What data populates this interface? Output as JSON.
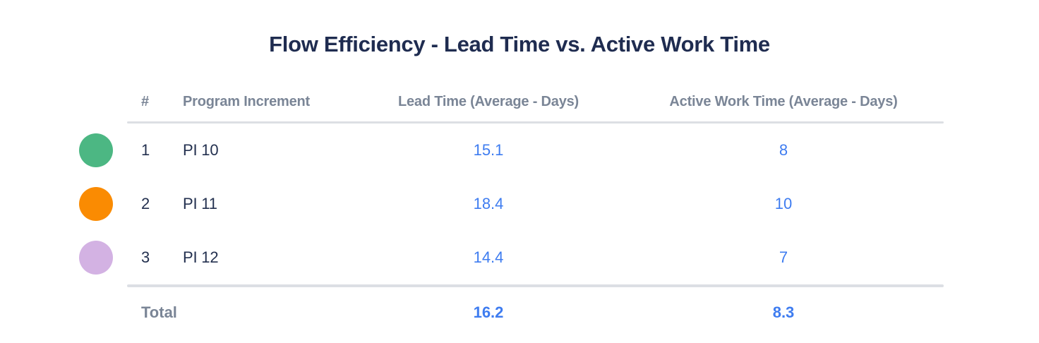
{
  "title": "Flow Efficiency - Lead Time vs. Active Work Time",
  "colors": {
    "title_text": "#1f2c50",
    "header_text": "#7a8596",
    "row_text": "#23304f",
    "value_blue": "#3e7cf0",
    "divider": "#dcdfe4"
  },
  "table": {
    "columns": {
      "index": "#",
      "program_increment": "Program Increment",
      "lead_time": "Lead Time (Average - Days)",
      "active_work_time": "Active Work Time (Average - Days)"
    },
    "rows": [
      {
        "index": "1",
        "name": "PI 10",
        "lead": "15.1",
        "active": "8",
        "marker_color": "#4cb783",
        "marker_color_name": "green"
      },
      {
        "index": "2",
        "name": "PI 11",
        "lead": "18.4",
        "active": "10",
        "marker_color": "#fa8b02",
        "marker_color_name": "orange"
      },
      {
        "index": "3",
        "name": "PI 12",
        "lead": "14.4",
        "active": "7",
        "marker_color": "#d3b2e3",
        "marker_color_name": "lavender"
      }
    ],
    "total": {
      "label": "Total",
      "lead": "16.2",
      "active": "8.3"
    }
  },
  "chart_data": {
    "type": "table",
    "title": "Flow Efficiency - Lead Time vs. Active Work Time",
    "columns": [
      "#",
      "Program Increment",
      "Lead Time (Average - Days)",
      "Active Work Time (Average - Days)"
    ],
    "rows": [
      [
        1,
        "PI 10",
        15.1,
        8
      ],
      [
        2,
        "PI 11",
        18.4,
        10
      ],
      [
        3,
        "PI 12",
        14.4,
        7
      ]
    ],
    "total": {
      "label": "Total",
      "lead_time_avg_days": 16.2,
      "active_work_time_avg_days": 8.3
    },
    "row_marker_colors": [
      "#4cb783",
      "#fa8b02",
      "#d3b2e3"
    ]
  }
}
